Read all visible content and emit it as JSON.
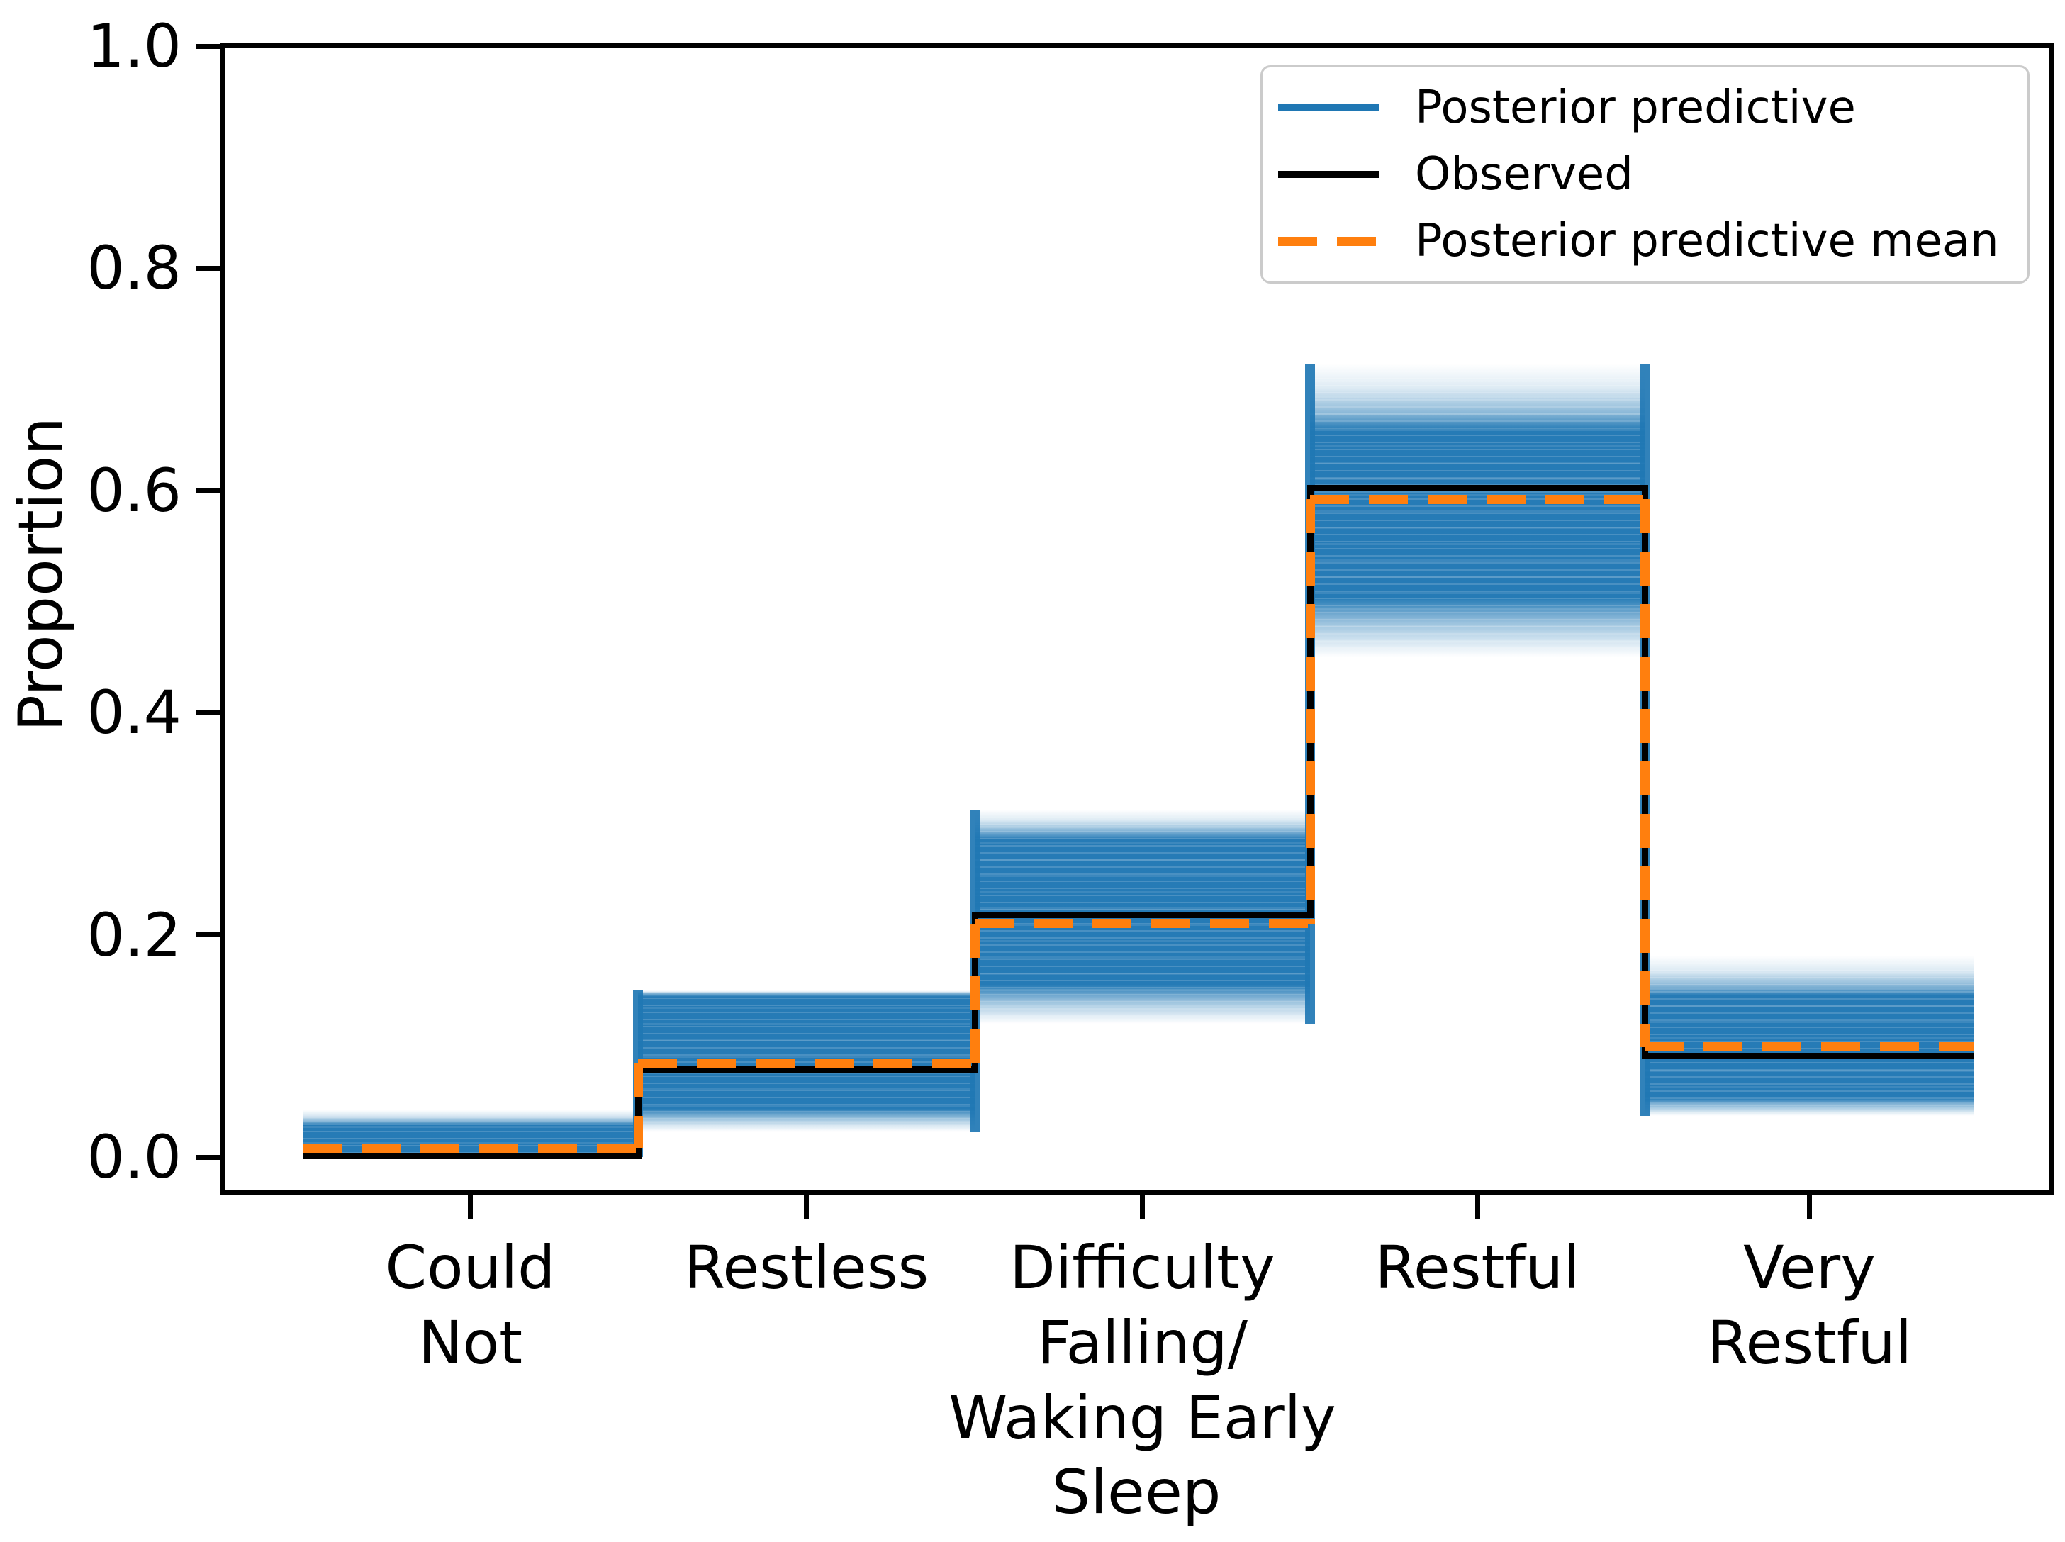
{
  "figure": {
    "background": "#ffffff"
  },
  "chart_data": {
    "type": "step",
    "title": "",
    "xlabel": "Sleep",
    "ylabel": "Proportion",
    "ylim": [
      0.0,
      1.0
    ],
    "yticks": [
      "0.0",
      "0.2",
      "0.4",
      "0.6",
      "0.8",
      "1.0"
    ],
    "ytick_values": [
      0.0,
      0.2,
      0.4,
      0.6,
      0.8,
      1.0
    ],
    "grid": false,
    "categories": [
      "Could Not",
      "Restless",
      "Difficulty Falling/ Waking Early",
      "Restful",
      "Very Restful"
    ],
    "category_label_lines": [
      [
        "Could",
        "Not"
      ],
      [
        "Restless"
      ],
      [
        "Difficulty",
        "Falling/",
        "Waking Early"
      ],
      [
        "Restful"
      ],
      [
        "Very",
        "Restful"
      ]
    ],
    "series": [
      {
        "name": "Posterior predictive",
        "style": "band-of-many-step-lines",
        "color": "#1f77b4",
        "band_low": [
          0.0,
          0.023,
          0.12,
          0.45,
          0.037
        ],
        "band_high": [
          0.043,
          0.15,
          0.313,
          0.714,
          0.181
        ],
        "dense_low": [
          0.001,
          0.041,
          0.151,
          0.498,
          0.05
        ],
        "dense_high": [
          0.03,
          0.147,
          0.29,
          0.66,
          0.148
        ]
      },
      {
        "name": "Observed",
        "style": "solid-step",
        "color": "#000000",
        "values": [
          0.001,
          0.079,
          0.218,
          0.602,
          0.091
        ]
      },
      {
        "name": "Posterior predictive mean",
        "style": "dashed-step",
        "color": "#ff7f0e",
        "values": [
          0.008,
          0.084,
          0.21,
          0.592,
          0.099
        ]
      }
    ],
    "legend": {
      "position": "upper right",
      "items": [
        {
          "label": "Posterior predictive",
          "color": "#1f77b4",
          "line": "solid"
        },
        {
          "label": "Observed",
          "color": "#000000",
          "line": "solid"
        },
        {
          "label": "Posterior predictive mean",
          "color": "#ff7f0e",
          "line": "dashed"
        }
      ]
    }
  }
}
